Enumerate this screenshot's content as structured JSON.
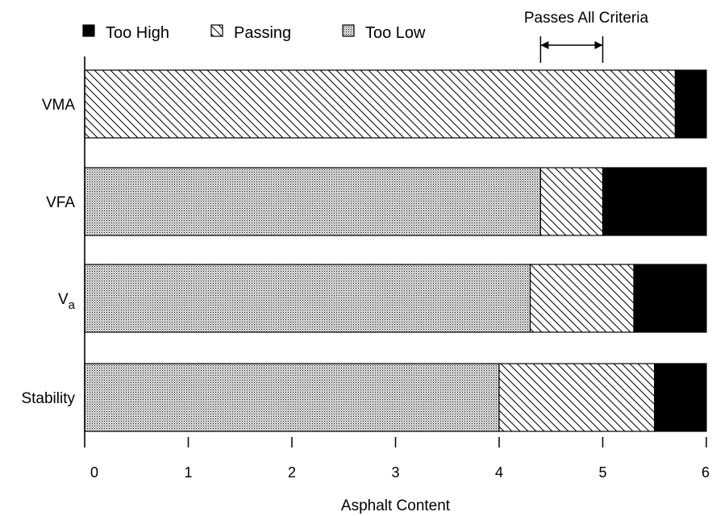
{
  "chart_data": {
    "type": "bar",
    "orientation": "horizontal",
    "stacked": true,
    "categories": [
      "VMA",
      "VFA",
      "Va",
      "Stability"
    ],
    "category_labels": [
      {
        "main": "VMA",
        "sub": ""
      },
      {
        "main": "VFA",
        "sub": ""
      },
      {
        "main": "V",
        "sub": "a"
      },
      {
        "main": "Stability",
        "sub": ""
      }
    ],
    "series": [
      {
        "name": "Too Low",
        "pattern": "dots",
        "segments": [
          null,
          [
            0,
            4.4
          ],
          [
            0,
            4.3
          ],
          [
            0,
            4.0
          ]
        ]
      },
      {
        "name": "Passing",
        "pattern": "hatch",
        "segments": [
          [
            0,
            5.7
          ],
          [
            4.4,
            5.0
          ],
          [
            4.3,
            5.3
          ],
          [
            4.0,
            5.5
          ]
        ]
      },
      {
        "name": "Too High",
        "pattern": "solid",
        "segments": [
          [
            5.7,
            6
          ],
          [
            5.0,
            6
          ],
          [
            5.3,
            6
          ],
          [
            5.5,
            6
          ]
        ]
      }
    ],
    "legend": {
      "placement": "top",
      "items": [
        {
          "label": "Too High",
          "pattern": "solid"
        },
        {
          "label": "Passing",
          "pattern": "hatch"
        },
        {
          "label": "Too Low",
          "pattern": "dots"
        }
      ]
    },
    "annotation": {
      "text": "Passes All Criteria",
      "range": [
        4.4,
        5.0
      ]
    },
    "xlabel": "Asphalt Content",
    "ylabel": "",
    "xlim": [
      0,
      6
    ],
    "xticks": [
      "0",
      "1",
      "2",
      "3",
      "4",
      "5",
      "6"
    ],
    "grid": false,
    "colors": {
      "ink": "#000000",
      "dot_fill": "#d9d9d9",
      "background": "#ffffff"
    }
  }
}
